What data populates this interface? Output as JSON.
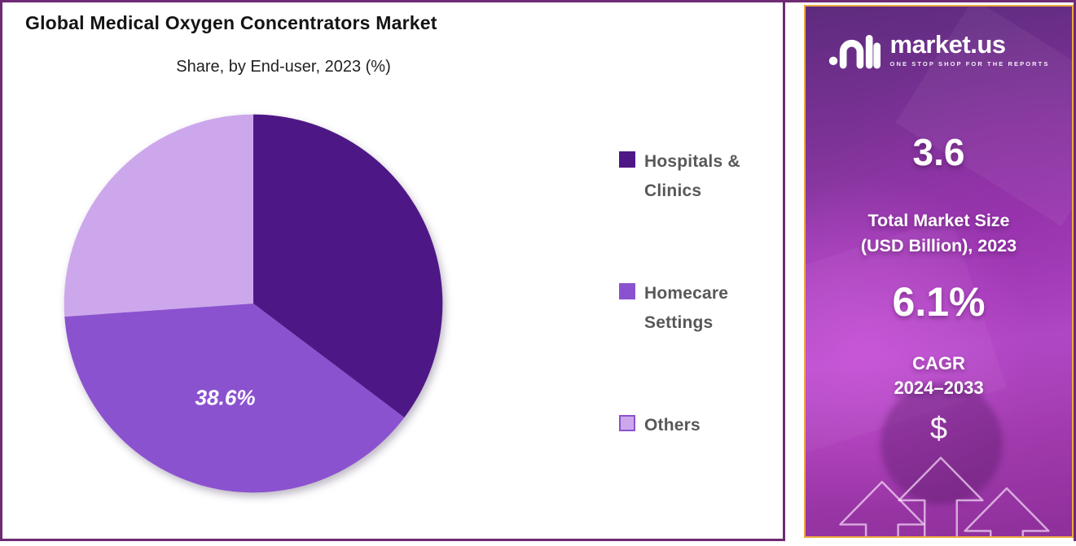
{
  "frame": {
    "border_color": "#6e2a74",
    "background": "#ffffff"
  },
  "chart": {
    "title": "Global Medical Oxygen Concentrators Market",
    "subtitle": "Share, by End-user, 2023 (%)"
  },
  "chart_data": {
    "type": "pie",
    "title": "Global Medical Oxygen Concentrators Market",
    "subtitle": "Share, by End-user, 2023 (%)",
    "unit": "%",
    "year": "2023",
    "direction": "clockwise",
    "start_angle_deg": 0,
    "legend_position": "right",
    "slices": [
      {
        "label": "Hospitals & Clinics",
        "value": 35.3,
        "color": "#4e1786",
        "data_label": ""
      },
      {
        "label": "Homecare Settings",
        "value": 38.6,
        "color": "#8b52cf",
        "data_label": "38.6%"
      },
      {
        "label": "Others",
        "value": 26.1,
        "color": "#cda7ec",
        "data_label": "",
        "swatch_border": "#8b52cf"
      }
    ],
    "notes": "Only the Homecare Settings slice carries a data label (38.6%); the other slice values are estimated from arc angles."
  },
  "sidebar": {
    "brand": {
      "name": "market.us",
      "tagline": "ONE STOP SHOP FOR THE REPORTS"
    },
    "market_size": {
      "value": "3.6",
      "label_line1": "Total Market Size",
      "label_line2": "(USD Billion), 2023"
    },
    "cagr": {
      "value": "6.1%",
      "label_line1": "CAGR",
      "label_line2": "2024–2033"
    },
    "dollar_symbol": "$",
    "border_color": "#edaa3f",
    "gradient": [
      "#5e2b7e",
      "#7c3296",
      "#a13fb6",
      "#b44cc9",
      "#8e2f9b"
    ]
  }
}
